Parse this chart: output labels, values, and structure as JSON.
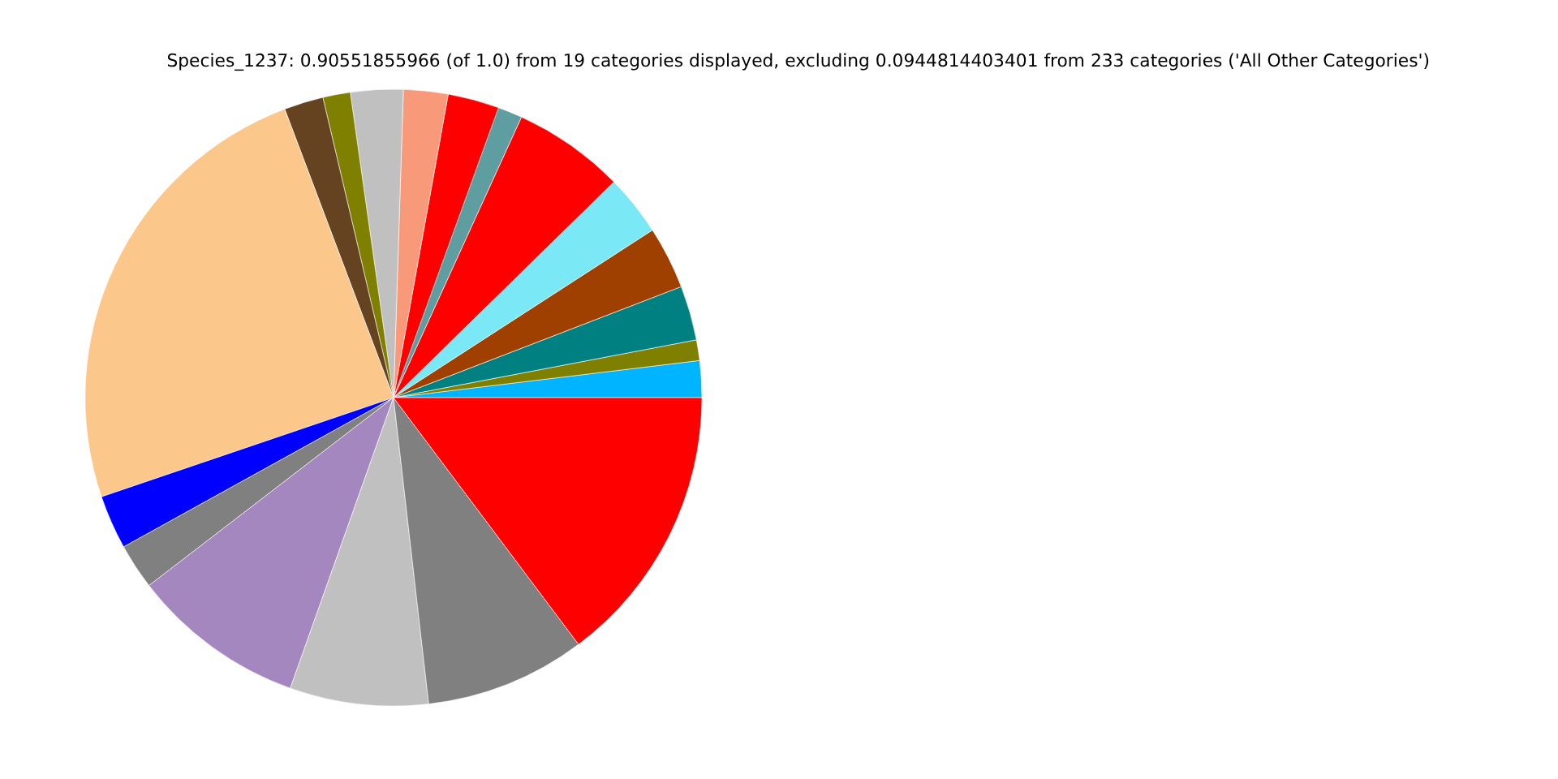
{
  "chart_data": {
    "type": "pie",
    "title": "Species_1237: 0.90551855966 (of 1.0) from 19 categories displayed, excluding 0.0944814403401 from 233 categories ('All Other Categories')",
    "categories": [
      null,
      null,
      null,
      null,
      null,
      null,
      null,
      null,
      null,
      null,
      null,
      null,
      null,
      null,
      null,
      null,
      null,
      null,
      null
    ],
    "values": [
      1.92,
      1.08,
      2.86,
      3.28,
      3.19,
      5.86,
      1.28,
      2.69,
      2.33,
      2.75,
      1.44,
      2.06,
      24.47,
      2.83,
      2.39,
      9.14,
      7.25,
      8.42,
      14.76
    ],
    "colors": [
      "#00b4ff",
      "#808000",
      "#008080",
      "#a04000",
      "#7ae9f5",
      "#ff0000",
      "#5f9ea0",
      "#ff0000",
      "#f89a7a",
      "#c0c0c0",
      "#808000",
      "#654321",
      "#fcc78a",
      "#0000ff",
      "#808080",
      "#a387be",
      "#c0c0c0",
      "#808080",
      "#ff0000"
    ],
    "legend": false
  }
}
